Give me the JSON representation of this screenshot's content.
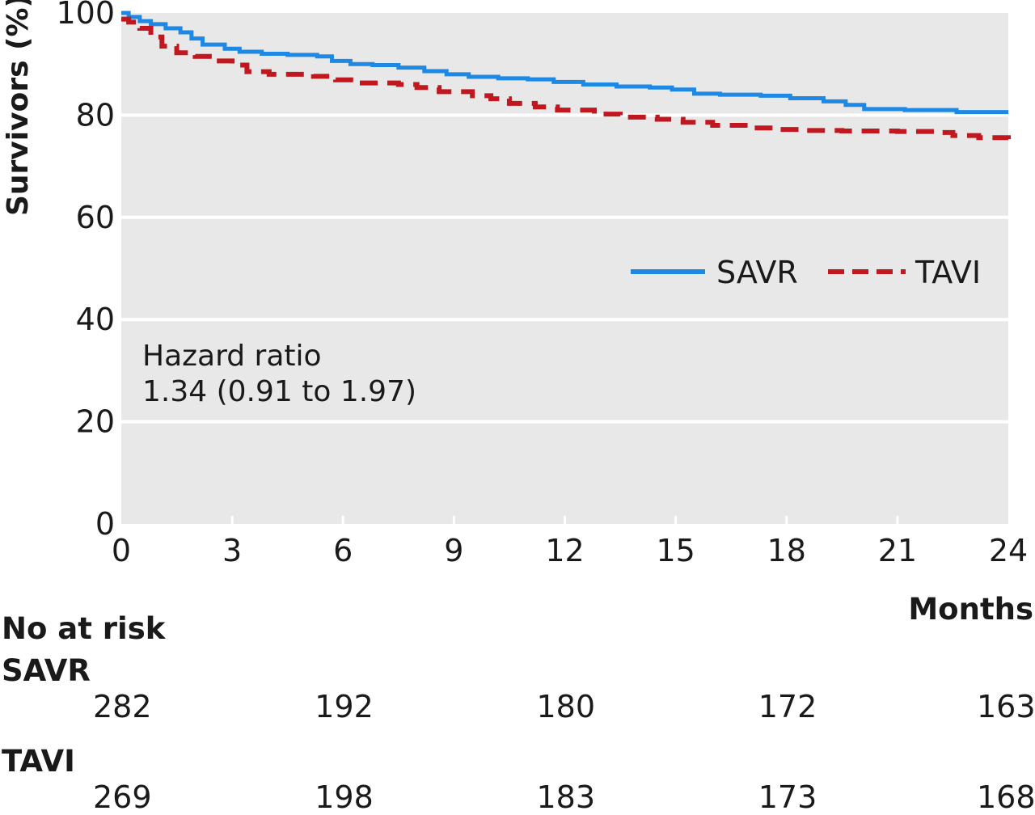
{
  "chart_data": {
    "type": "line",
    "step": true,
    "ylabel": "Survivors (%)",
    "xlabel": "Months",
    "xlim": [
      0,
      24
    ],
    "ylim": [
      0,
      100
    ],
    "xticks": [
      0,
      3,
      6,
      9,
      12,
      15,
      18,
      21,
      24
    ],
    "yticks": [
      0,
      20,
      40,
      60,
      80,
      100
    ],
    "grid": "horizontal",
    "legend": "inside-right",
    "series": [
      {
        "name": "SAVR",
        "color": "#1e88e5",
        "style": "solid",
        "x": [
          0,
          0.2,
          0.5,
          0.8,
          1.2,
          1.6,
          1.9,
          2.2,
          2.8,
          3.2,
          3.8,
          4.5,
          5.3,
          5.7,
          6.2,
          6.8,
          7.5,
          8.2,
          8.8,
          9.4,
          10.2,
          11.0,
          11.7,
          12.5,
          13.4,
          14.3,
          14.9,
          15.5,
          16.2,
          17.3,
          18.1,
          19.0,
          19.6,
          20.1,
          21.2,
          22.6,
          24
        ],
        "y": [
          100,
          99.2,
          98.4,
          97.8,
          97.0,
          96.2,
          95.0,
          93.8,
          93.0,
          92.4,
          92.0,
          91.8,
          91.5,
          90.6,
          90.0,
          89.8,
          89.3,
          88.6,
          88.0,
          87.5,
          87.2,
          87.0,
          86.5,
          86.0,
          85.6,
          85.4,
          85.0,
          84.2,
          84.0,
          83.8,
          83.3,
          82.7,
          82.0,
          81.2,
          81.0,
          80.6,
          80.6
        ]
      },
      {
        "name": "TAVI",
        "color": "#c0181e",
        "style": "dashed",
        "x": [
          0,
          0.2,
          0.5,
          0.8,
          1.1,
          1.5,
          2.0,
          2.5,
          3.0,
          3.4,
          4.0,
          5.2,
          5.8,
          6.4,
          7.5,
          8.0,
          8.6,
          9.5,
          10.0,
          10.5,
          11.2,
          11.8,
          12.8,
          13.5,
          14.5,
          15.2,
          16.0,
          17.0,
          17.8,
          18.5,
          19.5,
          21.0,
          22.0,
          22.5,
          23.2,
          24
        ],
        "y": [
          98.8,
          98.2,
          97.0,
          95.3,
          93.5,
          92.2,
          91.5,
          90.6,
          89.8,
          88.5,
          88.0,
          87.6,
          86.9,
          86.3,
          86.0,
          85.4,
          84.6,
          83.8,
          83.2,
          82.3,
          81.6,
          81.0,
          80.2,
          79.6,
          79.2,
          78.6,
          78.0,
          77.5,
          77.2,
          77.0,
          76.9,
          76.8,
          76.6,
          76.0,
          75.6,
          75.3
        ]
      }
    ],
    "annotation": {
      "line1": "Hazard ratio",
      "line2": "1.34 (0.91 to 1.97)"
    },
    "at_risk": {
      "title": "No at risk",
      "months": [
        0,
        6,
        12,
        18,
        24
      ],
      "groups": [
        {
          "name": "SAVR",
          "values": [
            "282",
            "192",
            "180",
            "172",
            "163"
          ]
        },
        {
          "name": "TAVI",
          "values": [
            "269",
            "198",
            "183",
            "173",
            "168"
          ]
        }
      ]
    }
  }
}
